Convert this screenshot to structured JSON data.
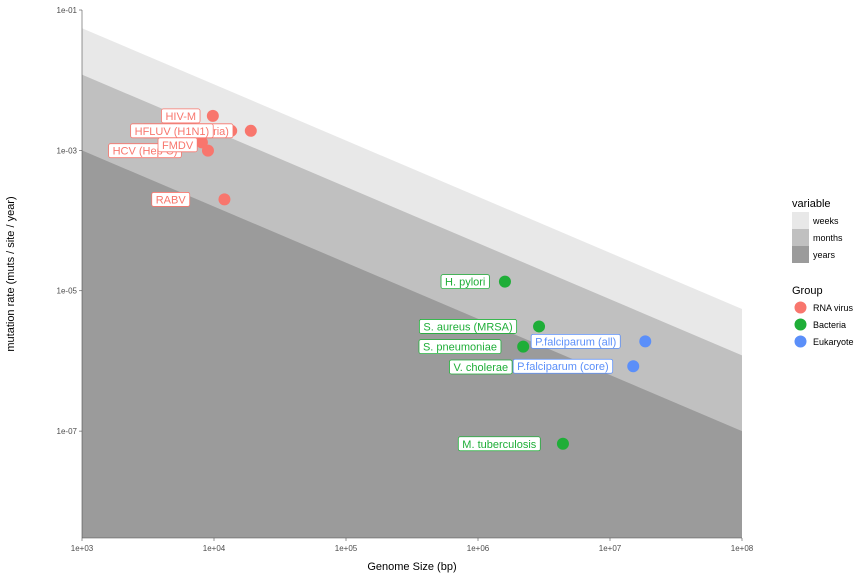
{
  "chart_data": {
    "type": "scatter",
    "title": "",
    "xlabel": "Genome Size (bp)",
    "ylabel": "mutation rate (muts / site / year)",
    "xscale": "log",
    "yscale": "log",
    "xlim": [
      1000,
      100000000
    ],
    "ylim": [
      3e-09,
      0.1
    ],
    "xticks": [
      1000,
      10000,
      100000,
      1000000,
      10000000,
      100000000
    ],
    "xtick_labels": [
      "1e+03",
      "1e+04",
      "1e+05",
      "1e+06",
      "1e+07",
      "1e+08"
    ],
    "yticks": [
      0.1,
      0.001,
      1e-05,
      1e-07
    ],
    "ytick_labels": [
      "1e-01",
      "1e-03",
      "1e-05",
      "1e-07"
    ],
    "grid": false,
    "bands": {
      "legend_title": "variable",
      "entries": [
        {
          "name": "weeks",
          "color": "#e8e8e8",
          "y_at_xmin": 0.055,
          "y_at_xmax": 5.5e-06
        },
        {
          "name": "months",
          "color": "#c0c0c0",
          "y_at_xmin": 0.012,
          "y_at_xmax": 1.2e-06
        },
        {
          "name": "years",
          "color": "#9b9b9b",
          "y_at_xmin": 0.001,
          "y_at_xmax": 1e-07
        }
      ]
    },
    "groups": {
      "legend_title": "Group",
      "entries": [
        {
          "name": "RNA virus",
          "color": "#f8766d"
        },
        {
          "name": "Bacteria",
          "color": "#1fae38"
        },
        {
          "name": "Eukaryote",
          "color": "#5b8ff9"
        }
      ]
    },
    "legend_position": "right",
    "points": [
      {
        "label": "HIV-M",
        "group": "RNA virus",
        "x": 9800,
        "y": 0.0031
      },
      {
        "label": "HFLUV (H1N1)",
        "group": "RNA virus",
        "x": 13500,
        "y": 0.0019
      },
      {
        "label": "HFLUV (Victoria)",
        "group": "RNA virus",
        "x": 19000,
        "y": 0.0019
      },
      {
        "label": "FMDV",
        "group": "RNA virus",
        "x": 8100,
        "y": 0.0013
      },
      {
        "label": "HCV (Hep C)",
        "group": "RNA virus",
        "x": 9000,
        "y": 0.00099
      },
      {
        "label": "RABV",
        "group": "RNA virus",
        "x": 12000,
        "y": 0.0002
      },
      {
        "label": "H. pylori",
        "group": "Bacteria",
        "x": 1600000,
        "y": 1.35e-05
      },
      {
        "label": "S. aureus (MRSA)",
        "group": "Bacteria",
        "x": 2900000,
        "y": 3.1e-06
      },
      {
        "label": "S. pneumoniae",
        "group": "Bacteria",
        "x": 2200000,
        "y": 1.6e-06
      },
      {
        "label": "V. cholerae",
        "group": "Bacteria",
        "x": 4000000,
        "y": 8.2e-07
      },
      {
        "label": "M. tuberculosis",
        "group": "Bacteria",
        "x": 4400000,
        "y": 6.6e-08
      },
      {
        "label": "P.falciparum (all)",
        "group": "Eukaryote",
        "x": 18500000,
        "y": 1.9e-06
      },
      {
        "label": "P.falciparum (core)",
        "group": "Eukaryote",
        "x": 15000000,
        "y": 8.4e-07
      }
    ],
    "labels": [
      {
        "text": "HIV-M",
        "group": "RNA virus",
        "x": 5600,
        "y": 0.0031
      },
      {
        "text": "HFLUV (Victoria)",
        "group": "RNA virus",
        "x": 6300,
        "y": 0.0019
      },
      {
        "text": "HFLUV (H1N1)",
        "group": "RNA virus",
        "x": 4800,
        "y": 0.0019
      },
      {
        "text": "HCV (Hep C)",
        "group": "RNA virus",
        "x": 3000,
        "y": 0.00099
      },
      {
        "text": "FMDV",
        "group": "RNA virus",
        "x": 5300,
        "y": 0.0012
      },
      {
        "text": "RABV",
        "group": "RNA virus",
        "x": 4700,
        "y": 0.0002
      },
      {
        "text": "H. pylori",
        "group": "Bacteria",
        "x": 800000,
        "y": 1.35e-05
      },
      {
        "text": "S. aureus (MRSA)",
        "group": "Bacteria",
        "x": 840000,
        "y": 3.1e-06
      },
      {
        "text": "S. pneumoniae",
        "group": "Bacteria",
        "x": 730000,
        "y": 1.6e-06
      },
      {
        "text": "V. cholerae",
        "group": "Bacteria",
        "x": 1050000,
        "y": 8.2e-07
      },
      {
        "text": "M. tuberculosis",
        "group": "Bacteria",
        "x": 1450000,
        "y": 6.6e-08
      },
      {
        "text": "P.falciparum (all)",
        "group": "Eukaryote",
        "x": 5500000,
        "y": 1.9e-06
      },
      {
        "text": "P.falciparum (core)",
        "group": "Eukaryote",
        "x": 4400000,
        "y": 8.4e-07
      }
    ]
  }
}
